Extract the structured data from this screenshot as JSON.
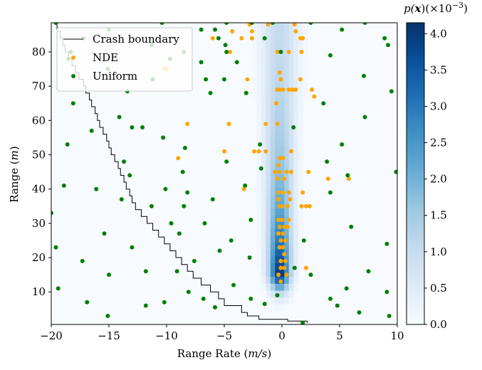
{
  "chart_data": {
    "type": "heatmap",
    "xlabel_main": "Range Rate (",
    "xlabel_unit": "m/s",
    "xlabel_end": ")",
    "ylabel_main": "Range (",
    "ylabel_unit": "m",
    "ylabel_end": ")",
    "xlim": [
      -20,
      10
    ],
    "ylim": [
      0.5,
      88.5
    ],
    "x_ticks": [
      -20,
      -15,
      -10,
      -5,
      0,
      5,
      10
    ],
    "x_tick_labels": [
      "−20",
      "−15",
      "−10",
      "−5",
      "0",
      "5",
      "10"
    ],
    "y_ticks": [
      10,
      20,
      30,
      40,
      50,
      60,
      70,
      80
    ],
    "y_tick_labels": [
      "10",
      "20",
      "30",
      "40",
      "50",
      "60",
      "70",
      "80"
    ],
    "colorbar": {
      "title": "p(x)(×10⁻³)",
      "title_p": "p(",
      "title_x": "x",
      "title_rest": ")(×10",
      "title_exp": "−3",
      "title_close": ")",
      "range": [
        0,
        4.15
      ],
      "ticks": [
        0.0,
        0.5,
        1.0,
        1.5,
        2.0,
        2.5,
        3.0,
        3.5,
        4.0
      ],
      "tick_labels": [
        "0.0",
        "0.5",
        "1.0",
        "1.5",
        "2.0",
        "2.5",
        "3.0",
        "3.5",
        "4.0"
      ],
      "colormap": "Blues"
    },
    "legend": {
      "placement": "upper-left",
      "entries": [
        {
          "label": "Crash boundary",
          "kind": "line",
          "color": "#000000"
        },
        {
          "label": "NDE",
          "kind": "point",
          "color": "#ffa500"
        },
        {
          "label": "Uniform",
          "kind": "point",
          "color": "#008000"
        }
      ]
    },
    "heatmap_model": {
      "description_of_density": "concentrated near range rate 0",
      "peak_value": 4.15,
      "center_rr": -0.2,
      "sigma_rr_base": 0.55,
      "peak_range": 16,
      "min_range": 4
    },
    "crash_boundary": [
      [
        -20,
        88.5
      ],
      [
        -19.6,
        88
      ],
      [
        -19.5,
        86
      ],
      [
        -19.2,
        84
      ],
      [
        -19.0,
        82
      ],
      [
        -18.8,
        80
      ],
      [
        -18.5,
        78
      ],
      [
        -18.2,
        76
      ],
      [
        -17.9,
        74
      ],
      [
        -17.6,
        72
      ],
      [
        -17.2,
        70
      ],
      [
        -17.0,
        68
      ],
      [
        -16.7,
        66
      ],
      [
        -16.5,
        64
      ],
      [
        -16.2,
        62
      ],
      [
        -16.0,
        60
      ],
      [
        -15.8,
        58
      ],
      [
        -15.5,
        56
      ],
      [
        -15.2,
        54
      ],
      [
        -15.0,
        52
      ],
      [
        -14.8,
        50
      ],
      [
        -14.5,
        48
      ],
      [
        -14.2,
        46
      ],
      [
        -14.0,
        44
      ],
      [
        -13.7,
        42
      ],
      [
        -13.5,
        40
      ],
      [
        -13.2,
        38
      ],
      [
        -13.0,
        36
      ],
      [
        -12.7,
        34
      ],
      [
        -12.2,
        32
      ],
      [
        -11.7,
        30
      ],
      [
        -11.2,
        28
      ],
      [
        -10.7,
        26
      ],
      [
        -10.2,
        24
      ],
      [
        -9.7,
        22
      ],
      [
        -9.2,
        20
      ],
      [
        -8.7,
        18
      ],
      [
        -8.2,
        16
      ],
      [
        -7.7,
        14
      ],
      [
        -7.0,
        12
      ],
      [
        -6.2,
        10
      ],
      [
        -5.5,
        8
      ],
      [
        -5.0,
        6
      ],
      [
        -3.5,
        4
      ],
      [
        -3.0,
        3
      ],
      [
        -2.0,
        2
      ],
      [
        0.5,
        1.5
      ],
      [
        2.2,
        1.0
      ]
    ],
    "series": [
      {
        "name": "NDE",
        "color": "#ffa500",
        "points": [
          [
            -2.8,
            88
          ],
          [
            -1.2,
            88
          ],
          [
            1.1,
            88
          ],
          [
            -4.3,
            86
          ],
          [
            -2.6,
            86
          ],
          [
            1.2,
            86
          ],
          [
            -6.0,
            84
          ],
          [
            -3.5,
            84
          ],
          [
            -2.6,
            84
          ],
          [
            1.6,
            84
          ],
          [
            1.8,
            84
          ],
          [
            -0.4,
            80
          ],
          [
            -4.5,
            80
          ],
          [
            0.6,
            80
          ],
          [
            1.7,
            80
          ],
          [
            -10.2,
            75
          ],
          [
            -10.0,
            75
          ],
          [
            -0.2,
            74
          ],
          [
            -3.0,
            72
          ],
          [
            1.6,
            72
          ],
          [
            -0.1,
            72
          ],
          [
            -0.4,
            69
          ],
          [
            -0.2,
            69
          ],
          [
            0.1,
            69
          ],
          [
            0.6,
            69
          ],
          [
            0.9,
            69
          ],
          [
            1.2,
            69
          ],
          [
            2.6,
            69
          ],
          [
            2.8,
            67
          ],
          [
            -0.5,
            65
          ],
          [
            -8.2,
            59
          ],
          [
            -4.6,
            59
          ],
          [
            -1.4,
            59
          ],
          [
            -0.4,
            59
          ],
          [
            -5.0,
            51
          ],
          [
            -2.4,
            51
          ],
          [
            -2.0,
            51
          ],
          [
            -1.4,
            51
          ],
          [
            0.8,
            51
          ],
          [
            -9.0,
            49
          ],
          [
            -0.2,
            49
          ],
          [
            0.1,
            49
          ],
          [
            -0.3,
            47
          ],
          [
            -0.6,
            45
          ],
          [
            -0.2,
            45
          ],
          [
            0.4,
            45
          ],
          [
            0.8,
            45
          ],
          [
            2.3,
            45
          ],
          [
            -0.4,
            43
          ],
          [
            0.2,
            43
          ],
          [
            4.0,
            43
          ],
          [
            5.8,
            43
          ],
          [
            -3.3,
            40
          ],
          [
            -0.3,
            39
          ],
          [
            0.1,
            39
          ],
          [
            0.6,
            39
          ],
          [
            1.8,
            39
          ],
          [
            -0.3,
            37
          ],
          [
            0.7,
            37
          ],
          [
            -0.2,
            35
          ],
          [
            0.0,
            35
          ],
          [
            0.5,
            35
          ],
          [
            1.7,
            35
          ],
          [
            2.1,
            35
          ],
          [
            2.4,
            35
          ],
          [
            -0.3,
            31
          ],
          [
            0.0,
            31
          ],
          [
            0.6,
            31
          ],
          [
            -0.2,
            29
          ],
          [
            0.2,
            29
          ],
          [
            0.5,
            29
          ],
          [
            -0.3,
            27
          ],
          [
            0.1,
            27
          ],
          [
            -0.1,
            25
          ],
          [
            0.3,
            25
          ],
          [
            -0.2,
            23
          ],
          [
            0.1,
            23
          ],
          [
            0.2,
            21
          ],
          [
            -0.1,
            19
          ],
          [
            0.3,
            19
          ],
          [
            -0.1,
            17
          ],
          [
            0.2,
            17
          ],
          [
            2.1,
            17
          ],
          [
            -0.3,
            15
          ],
          [
            0.4,
            15
          ],
          [
            -0.1,
            13
          ]
        ]
      },
      {
        "name": "Uniform",
        "color": "#008000",
        "points": [
          [
            -19.6,
            88.5
          ],
          [
            -10.4,
            88.5
          ],
          [
            -4.8,
            88.5
          ],
          [
            -2.6,
            88.5
          ],
          [
            -0.8,
            88.5
          ],
          [
            2.5,
            88.5
          ],
          [
            7.2,
            88.5
          ],
          [
            -15.0,
            86.5
          ],
          [
            -7.0,
            86.5
          ],
          [
            -5.8,
            86.5
          ],
          [
            5.2,
            86.5
          ],
          [
            -17.2,
            84
          ],
          [
            -5.5,
            84
          ],
          [
            -1.5,
            84
          ],
          [
            8.9,
            84
          ],
          [
            -11.3,
            82
          ],
          [
            -4.9,
            82
          ],
          [
            9.2,
            82
          ],
          [
            -18.3,
            80
          ],
          [
            -8.5,
            80
          ],
          [
            -4.8,
            80
          ],
          [
            -0.1,
            80
          ],
          [
            4.2,
            79
          ],
          [
            -18.5,
            78
          ],
          [
            -9.7,
            78
          ],
          [
            -7.0,
            77
          ],
          [
            -3.9,
            77
          ],
          [
            -15.1,
            75
          ],
          [
            7.1,
            73
          ],
          [
            -11.2,
            72
          ],
          [
            -6.6,
            72
          ],
          [
            -5.0,
            72
          ],
          [
            -13.4,
            68.5
          ],
          [
            -6.2,
            68
          ],
          [
            -3.1,
            68
          ],
          [
            9.5,
            68.5
          ],
          [
            -18.1,
            65
          ],
          [
            3.6,
            65
          ],
          [
            -14.1,
            61
          ],
          [
            7.2,
            61
          ],
          [
            -12.1,
            58
          ],
          [
            1.0,
            58
          ],
          [
            -13.0,
            58
          ],
          [
            -16.5,
            57
          ],
          [
            -10.3,
            55
          ],
          [
            -18.6,
            53
          ],
          [
            -1.9,
            53
          ],
          [
            5.2,
            53
          ],
          [
            -8.4,
            52
          ],
          [
            -13.7,
            48
          ],
          [
            -4.8,
            48
          ],
          [
            3.9,
            48
          ],
          [
            -1.8,
            46
          ],
          [
            -8.6,
            45
          ],
          [
            9.9,
            45
          ],
          [
            -13.2,
            44
          ],
          [
            5.7,
            44
          ],
          [
            -18.9,
            41
          ],
          [
            -3.2,
            41
          ],
          [
            -8.2,
            39
          ],
          [
            -16.1,
            40
          ],
          [
            4.2,
            39
          ],
          [
            -10.1,
            40
          ],
          [
            -13.9,
            37
          ],
          [
            -6.0,
            37
          ],
          [
            -11.3,
            35
          ],
          [
            -8.5,
            35
          ],
          [
            -20.0,
            33
          ],
          [
            -2.7,
            31
          ],
          [
            -9.6,
            30
          ],
          [
            -6.7,
            30
          ],
          [
            6.0,
            29
          ],
          [
            -15.4,
            27
          ],
          [
            -8.9,
            27
          ],
          [
            -4.4,
            25
          ],
          [
            1.9,
            25
          ],
          [
            9.1,
            24
          ],
          [
            -19.6,
            23
          ],
          [
            -13.0,
            23
          ],
          [
            -5.4,
            22
          ],
          [
            -2.8,
            20
          ],
          [
            -7.6,
            19
          ],
          [
            -17.3,
            19
          ],
          [
            -15.0,
            15
          ],
          [
            -11.8,
            16
          ],
          [
            -9.1,
            16
          ],
          [
            7.5,
            16
          ],
          [
            -4.2,
            12
          ],
          [
            2.5,
            15
          ],
          [
            1.1,
            17
          ],
          [
            -19.4,
            11
          ],
          [
            -8.1,
            10
          ],
          [
            5.6,
            11
          ],
          [
            9.1,
            10
          ],
          [
            -2.7,
            8
          ],
          [
            -10.2,
            7
          ],
          [
            -16.9,
            7
          ],
          [
            -11.8,
            6
          ],
          [
            -6.8,
            8
          ],
          [
            -1.5,
            6.5
          ],
          [
            4.8,
            6
          ],
          [
            -0.4,
            9
          ],
          [
            -15.1,
            3
          ],
          [
            -5.8,
            5.5
          ],
          [
            6.7,
            4
          ],
          [
            9.3,
            3
          ],
          [
            4.2,
            8
          ],
          [
            1.8,
            1
          ]
        ]
      }
    ]
  }
}
